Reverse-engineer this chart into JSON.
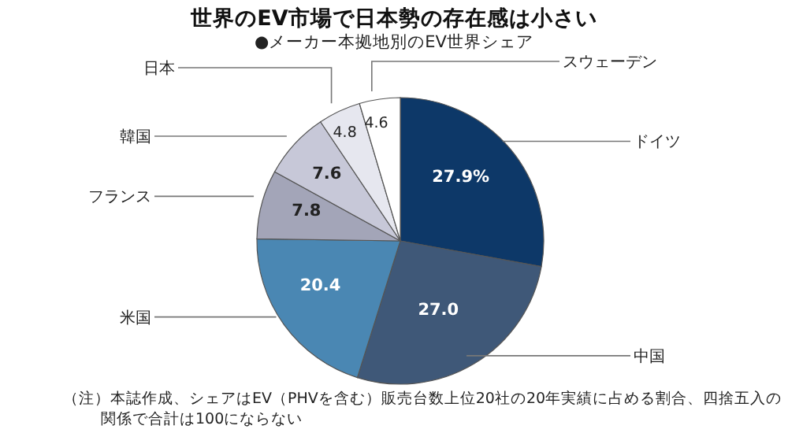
{
  "chart_data": {
    "type": "pie",
    "title": "世界のEV市場で日本勢の存在感は小さい",
    "subtitle": "●メーカー本拠地別のEV世界シェア",
    "categories": [
      "ドイツ",
      "中国",
      "米国",
      "フランス",
      "韓国",
      "日本",
      "スウェーデン"
    ],
    "values": [
      27.9,
      27.0,
      20.4,
      7.8,
      7.6,
      4.8,
      4.6
    ],
    "colors": [
      "#0d3868",
      "#3f5878",
      "#4a87b3",
      "#a3a5b8",
      "#c7c8d8",
      "#e6e7ef",
      "#ffffff"
    ],
    "value_labels": [
      "27.9%",
      "27.0",
      "20.4",
      "7.8",
      "7.6",
      "4.8",
      "4.6"
    ],
    "annotations": [
      "（注）本誌作成、シェアはEV（PHVを含む）販売台数上位20社の20年実績に占める割合、四捨五入の関係で合計は100にならない"
    ]
  }
}
